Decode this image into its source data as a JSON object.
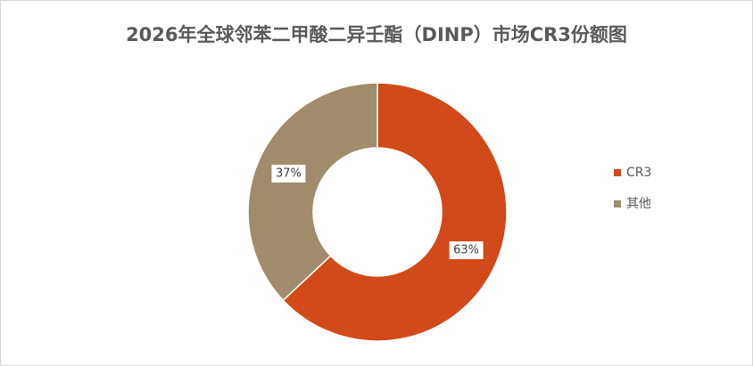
{
  "chart_data": {
    "type": "doughnut",
    "title": "2026年全球邻苯二甲酸二异壬酯（DINP）市场CR3份额图",
    "categories": [
      "CR3",
      "其他"
    ],
    "values": [
      63,
      37
    ],
    "value_labels": [
      "63%",
      "37%"
    ],
    "colors": [
      "#d24a19",
      "#a08c6a"
    ],
    "legend": "right"
  }
}
